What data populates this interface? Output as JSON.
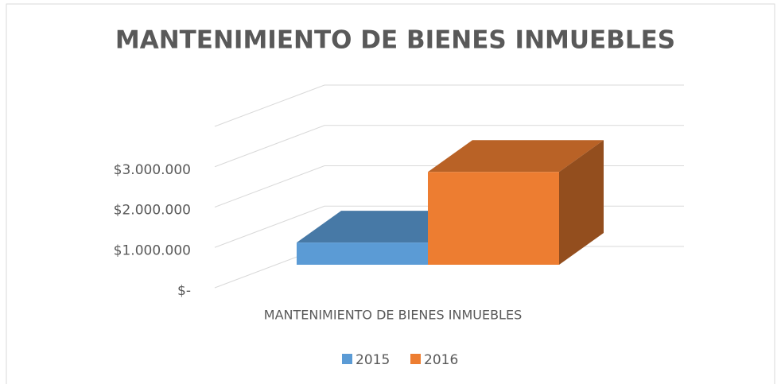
{
  "chart_data": {
    "type": "bar3d",
    "title": "MANTENIMIENTO DE BIENES INMUEBLES",
    "categories": [
      "MANTENIMIENTO DE BIENES INMUEBLES"
    ],
    "series": [
      {
        "name": "2015",
        "color": "#5b9bd5",
        "values": [
          550000
        ]
      },
      {
        "name": "2016",
        "color": "#ed7d31",
        "values": [
          2300000
        ]
      }
    ],
    "ylim": [
      0,
      4000000
    ],
    "yticks": [
      {
        "value": 0,
        "label": "$-"
      },
      {
        "value": 1000000,
        "label": "$1.000.000"
      },
      {
        "value": 2000000,
        "label": "$2.000.000"
      },
      {
        "value": 3000000,
        "label": "$3.000.000"
      }
    ],
    "grid": true,
    "legend": "bottom"
  }
}
